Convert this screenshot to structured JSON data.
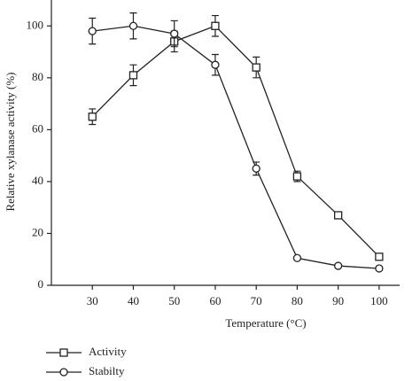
{
  "chart_data": {
    "type": "line",
    "x": [
      30,
      40,
      50,
      60,
      70,
      80,
      90,
      100
    ],
    "series": [
      {
        "name": "Activity",
        "color": "#222222",
        "marker": "square",
        "values": [
          65,
          81,
          94,
          100,
          84,
          42,
          27,
          11
        ],
        "errors": [
          3,
          4,
          4,
          4,
          4,
          2,
          1,
          1
        ]
      },
      {
        "name": "Stabilty",
        "color": "#222222",
        "marker": "circle",
        "values": [
          98,
          100,
          97,
          85,
          45,
          10.5,
          7.5,
          6.5
        ],
        "errors": [
          5,
          5,
          5,
          4,
          2.5,
          0.5,
          0.5,
          0.5
        ]
      }
    ],
    "xlabel": "Temperature (°C)",
    "ylabel": "Relative xylanase activity (%)",
    "xlim": [
      20,
      105
    ],
    "ylim": [
      0,
      110
    ],
    "xticks": [
      30,
      40,
      50,
      60,
      70,
      80,
      90,
      100
    ],
    "yticks": [
      0,
      20,
      40,
      60,
      80,
      100
    ],
    "legend": "bottom-left"
  }
}
